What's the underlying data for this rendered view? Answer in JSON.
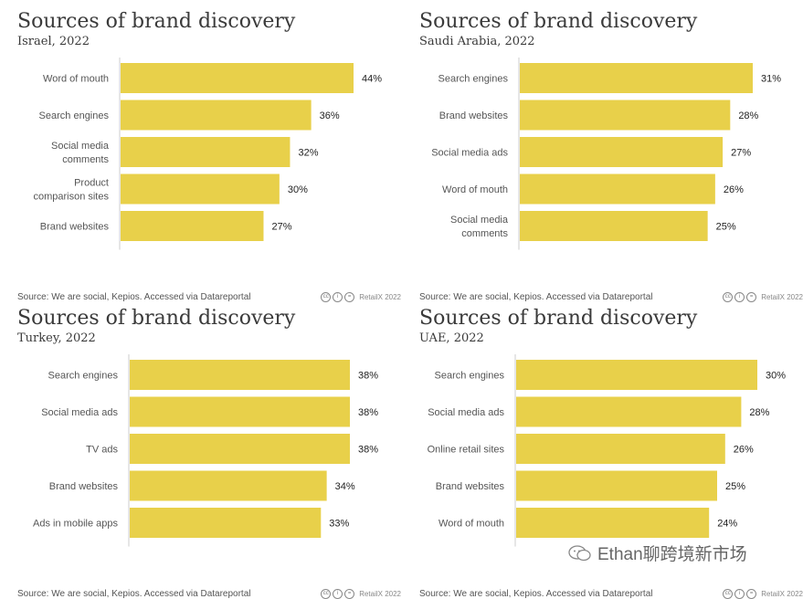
{
  "chart_data": [
    {
      "type": "bar",
      "orientation": "horizontal",
      "title": "Sources of brand discovery",
      "subtitle": "Israel, 2022",
      "categories": [
        [
          "Word of mouth"
        ],
        [
          "Search engines"
        ],
        [
          "Social media",
          "comments"
        ],
        [
          "Product",
          "comparison sites"
        ],
        [
          "Brand websites"
        ]
      ],
      "values": [
        44,
        36,
        32,
        30,
        27
      ],
      "value_labels": [
        "44%",
        "36%",
        "32%",
        "30%",
        "27%"
      ],
      "xlim": [
        0,
        44
      ],
      "source": "Source: We are social, Kepios. Accessed via Datareportal",
      "credit": "RetailX 2022"
    },
    {
      "type": "bar",
      "orientation": "horizontal",
      "title": "Sources of brand discovery",
      "subtitle": "Saudi Arabia, 2022",
      "categories": [
        [
          "Search engines"
        ],
        [
          "Brand websites"
        ],
        [
          "Social media ads"
        ],
        [
          "Word of mouth"
        ],
        [
          "Social media",
          "comments"
        ]
      ],
      "values": [
        31,
        28,
        27,
        26,
        25
      ],
      "value_labels": [
        "31%",
        "28%",
        "27%",
        "26%",
        "25%"
      ],
      "xlim": [
        0,
        31
      ],
      "source": "Source: We are social, Kepios. Accessed via Datareportal",
      "credit": "RetailX 2022"
    },
    {
      "type": "bar",
      "orientation": "horizontal",
      "title": "Sources of brand discovery",
      "subtitle": "Turkey, 2022",
      "categories": [
        [
          "Search engines"
        ],
        [
          "Social media ads"
        ],
        [
          "TV ads"
        ],
        [
          "Brand websites"
        ],
        [
          "Ads in mobile apps"
        ]
      ],
      "values": [
        38,
        38,
        38,
        34,
        33
      ],
      "value_labels": [
        "38%",
        "38%",
        "38%",
        "34%",
        "33%"
      ],
      "xlim": [
        0,
        38
      ],
      "source": "Source: We are social, Kepios. Accessed via Datareportal",
      "credit": "RetailX 2022"
    },
    {
      "type": "bar",
      "orientation": "horizontal",
      "title": "Sources of brand discovery",
      "subtitle": "UAE, 2022",
      "categories": [
        [
          "Search engines"
        ],
        [
          "Social media ads"
        ],
        [
          "Online retail sites"
        ],
        [
          "Brand websites"
        ],
        [
          "Word of mouth"
        ]
      ],
      "values": [
        30,
        28,
        26,
        25,
        24
      ],
      "value_labels": [
        "30%",
        "28%",
        "26%",
        "25%",
        "24%"
      ],
      "xlim": [
        0,
        30
      ],
      "source": "Source: We are social, Kepios. Accessed via Datareportal",
      "credit": "RetailX 2022"
    }
  ],
  "colors": {
    "bar": "#e8d04a",
    "axis": "#cccccc"
  },
  "watermark": {
    "text": "Ethan聊跨境新市场",
    "icon": "wechat-icon"
  }
}
